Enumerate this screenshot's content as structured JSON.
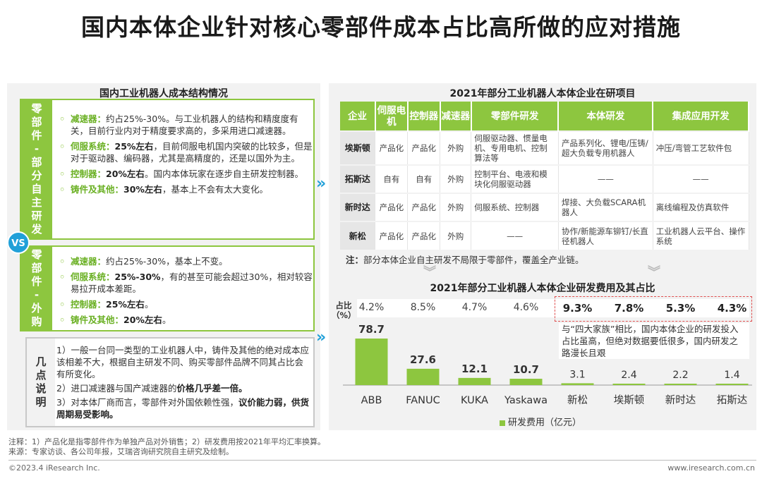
{
  "title": "国内本体企业针对核心零部件成本占比高所做的应对措施",
  "left": {
    "panel_title": "国内工业机器人成本结构情况",
    "section1": {
      "label": [
        "零",
        "部",
        "件",
        "-",
        "部",
        "分",
        "自",
        "主",
        "研",
        "发"
      ],
      "items": [
        {
          "name": "减速器：",
          "text": "约占25%-30%。与工业机器人的结构和精度度有关，目前行业内对于精度要求高的，多采用进口减速器。"
        },
        {
          "name": "伺服系统：",
          "bold": "25%左右",
          "text": "，目前伺服电机国内突破的比较多，但是对于驱动器、编码器，尤其是高精度的，还是以国外为主。"
        },
        {
          "name": "控制器：",
          "bold": "20%左右",
          "text": "。国内本体玩家在逐步自主研发控制器。"
        },
        {
          "name": "铸件及其他：",
          "bold": "30%左右",
          "text": "，基本上不会有太大变化。"
        }
      ]
    },
    "vs": "VS",
    "section2": {
      "label": [
        "零",
        "部",
        "件",
        "-",
        "外",
        "购"
      ],
      "items": [
        {
          "name": "减速器：",
          "text": "约占25%-30%，基本上不变。"
        },
        {
          "name": "伺服系统：",
          "bold": "25%-30%",
          "text": "，有的甚至可能会超过30%，相对较容易拉开成本差距。"
        },
        {
          "name": "控制器：",
          "bold": "25%左右",
          "text": "。"
        },
        {
          "name": "铸件及其他：",
          "bold": "20%左右",
          "text": "。"
        }
      ]
    },
    "notes": {
      "label": [
        "几",
        "点",
        "说",
        "明"
      ],
      "p1": "1）一般一台同一类型的工业机器人中，铸件及其他的绝对成本应该相差不大，根据自主研发不同、购买零部件品牌不同其占比会有所变化。",
      "p2_pre": "2）进口减速器与国产减速器的",
      "p2_bold": "价格几乎差一倍。",
      "p3_pre": "3）对本体厂商而言，零部件对外国依赖性强，",
      "p3_bold": "议价能力弱，供货周期易受影响。"
    }
  },
  "right": {
    "panel_title": "2021年部分工业机器人本体企业在研项目",
    "table": {
      "headers": [
        "企业",
        "伺服电机",
        "控制器",
        "减速器",
        "零部件研发",
        "本体研发",
        "集成应用开发"
      ],
      "rows": [
        [
          "埃斯顿",
          "产品化",
          "产品化",
          "外购",
          "伺服驱动器、惯量电机、专用电机、控制算法等",
          "产品系列化、锂电/压铸/超大负载专用机器人",
          "冲压/弯管工艺软件包"
        ],
        [
          "拓斯达",
          "自有",
          "自有",
          "外购",
          "控制平台、电液和模块化伺服驱动器",
          "——",
          "——"
        ],
        [
          "新时达",
          "产品化",
          "产品化",
          "外购",
          "伺服系统、控制器",
          "焊接、大负载SCARA机器人",
          "离线编程及仿真软件"
        ],
        [
          "新松",
          "产品化",
          "产品化",
          "外购",
          "——",
          "协作/新能源车铆钉/长直径机器人",
          "工业机器人云平台、操作系统"
        ]
      ],
      "note_label": "注：",
      "note": "部分本体企业自主研发不局限于零部件，覆盖全产业链。"
    }
  },
  "chart_data": {
    "type": "bar",
    "title": "2021年部分工业机器人本体企业研发费用及其占比",
    "categories": [
      "ABB",
      "FANUC",
      "KUKA",
      "Yaskawa",
      "新松",
      "埃斯顿",
      "新时达",
      "拓斯达"
    ],
    "series": [
      {
        "name": "研发费用（亿元）",
        "values": [
          78.7,
          27.6,
          12.1,
          10.7,
          3.1,
          2.4,
          2.2,
          1.4
        ]
      }
    ],
    "share_label": "占比（%）",
    "share": [
      "4.2%",
      "8.5%",
      "4.7%",
      "4.6%",
      "9.3%",
      "7.8%",
      "5.3%",
      "4.3%"
    ],
    "annotation": "与“四大家族”相比，国内本体企业的研发投入占比虽高，但绝对数据要低很多，国内研发之路漫长且艰",
    "color": "#8dc63f"
  },
  "footnote1": "注释：1）产品化是指零部件作为单独产品对外销售；2）研发费用按2021年平均汇率换算。",
  "footnote2": "来源：专家访谈、各公司年报，艾瑞咨询研究院自主研究及绘制。",
  "footer_left": "©2023.4 iResearch Inc.",
  "footer_right": "www.iresearch.com.cn"
}
